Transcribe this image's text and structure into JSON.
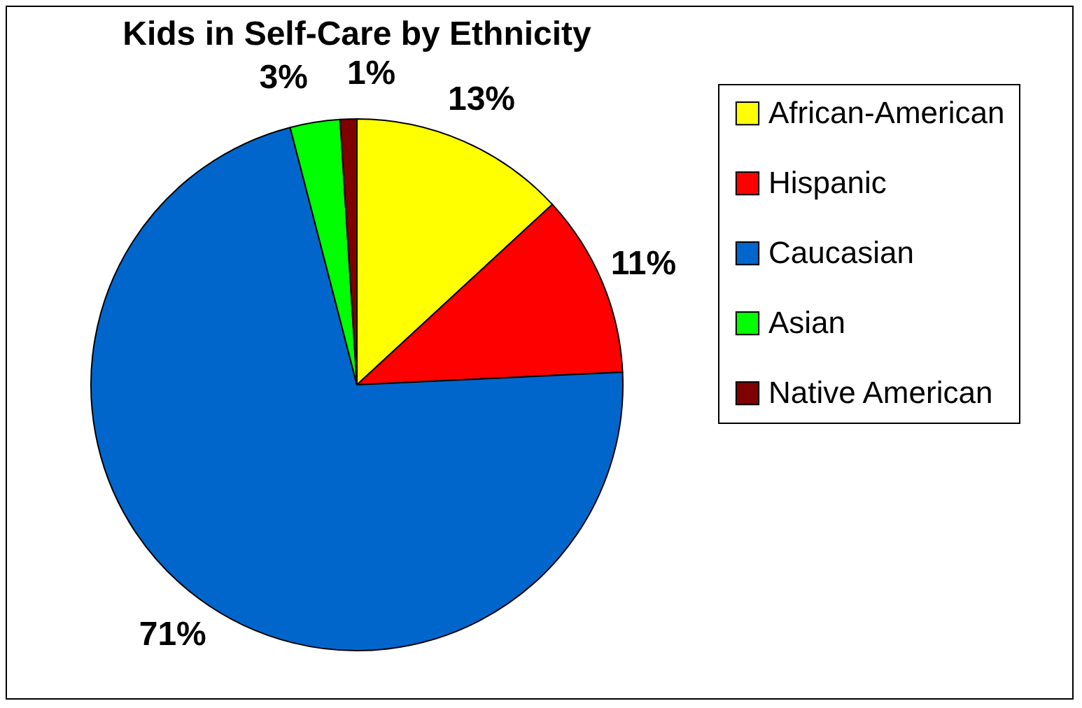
{
  "chart_data": {
    "type": "pie",
    "title": "Kids in Self-Care by Ethnicity",
    "categories": [
      "African-American",
      "Hispanic",
      "Caucasian",
      "Asian",
      "Native American"
    ],
    "values": [
      13,
      11,
      71,
      3,
      1
    ],
    "value_labels": [
      "13%",
      "11%",
      "71%",
      "3%",
      "1%"
    ],
    "colors": [
      "#ffff00",
      "#ff0000",
      "#0066cc",
      "#00ff00",
      "#800000"
    ],
    "legend": "right"
  }
}
